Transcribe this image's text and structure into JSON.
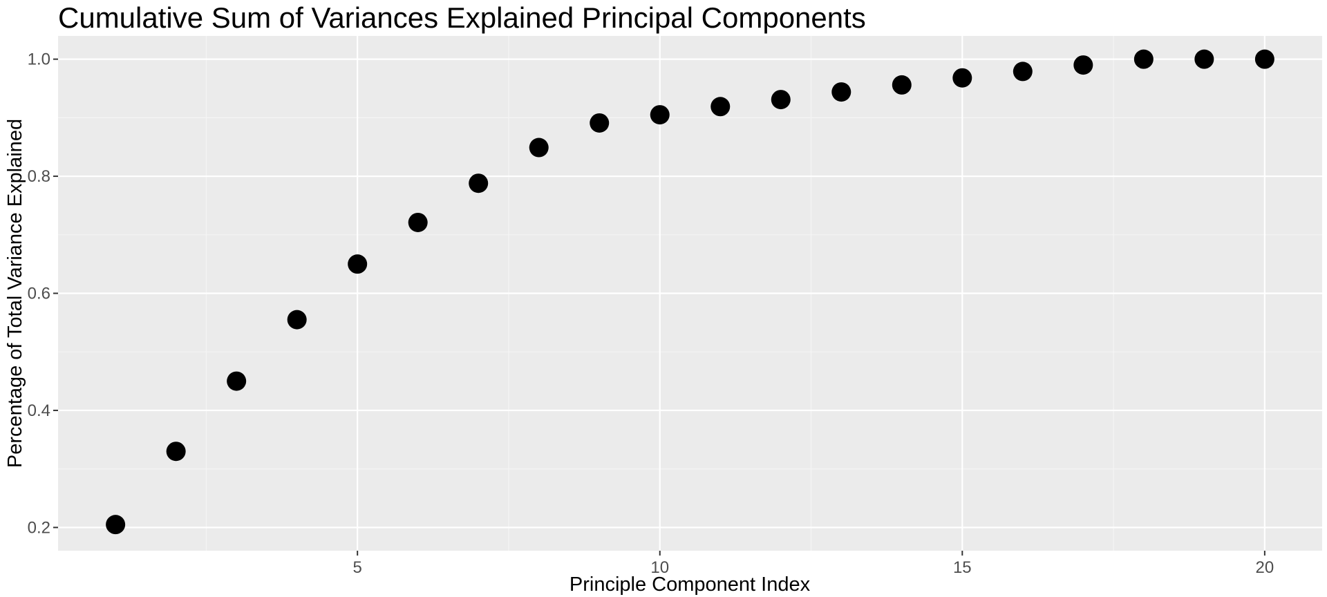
{
  "chart_data": {
    "type": "scatter",
    "title": "Cumulative Sum of Variances Explained Principal Components",
    "xlabel": "Principle Component Index",
    "ylabel": "Percentage of Total Variance Explained",
    "x": [
      1,
      2,
      3,
      4,
      5,
      6,
      7,
      8,
      9,
      10,
      11,
      12,
      13,
      14,
      15,
      16,
      17,
      18,
      19,
      20
    ],
    "y": [
      0.205,
      0.33,
      0.45,
      0.555,
      0.65,
      0.721,
      0.788,
      0.849,
      0.891,
      0.905,
      0.919,
      0.931,
      0.944,
      0.956,
      0.968,
      0.979,
      0.99,
      1.0,
      1.0,
      1.0
    ],
    "xlim": [
      0.05,
      20.95
    ],
    "ylim": [
      0.1603,
      1.0397
    ],
    "x_ticks": [
      5,
      10,
      15,
      20
    ],
    "x_tick_labels": [
      "5",
      "10",
      "15",
      "20"
    ],
    "x_minor_ticks": [
      2.5,
      7.5,
      12.5,
      17.5
    ],
    "y_ticks": [
      0.2,
      0.4,
      0.6,
      0.8,
      1.0
    ],
    "y_tick_labels": [
      "0.2",
      "0.4",
      "0.6",
      "0.8",
      "1.0"
    ],
    "y_minor_ticks": [
      0.3,
      0.5,
      0.7,
      0.9
    ],
    "grid": true,
    "legend": "none",
    "colors": {
      "panel_background": "#ebebeb",
      "grid_major": "#ffffff",
      "grid_minor": "#f5f5f5",
      "point": "#000000",
      "tick_label": "#4d4d4d",
      "tick_mark": "#333333"
    }
  }
}
